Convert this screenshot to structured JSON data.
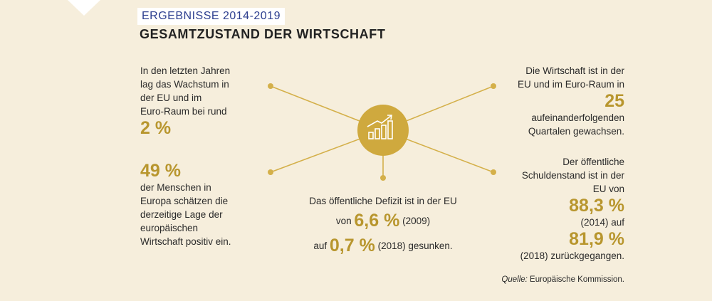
{
  "header": {
    "tag": "ERGEBNISSE 2014-2019",
    "title": "GESAMTZUSTAND DER WIRTSCHAFT"
  },
  "growth": {
    "lines": [
      "In den letzten Jahren",
      "lag das Wachstum in",
      "der EU und im",
      "Euro-Raum bei rund"
    ],
    "figure": "2 %"
  },
  "opinion": {
    "figure": "49 %",
    "lines": [
      "der Menschen in",
      "Europa schätzen die",
      "derzeitige Lage der",
      "europäischen",
      "Wirtschaft positiv ein."
    ]
  },
  "quarters": {
    "lines_before": [
      "Die Wirtschaft ist in der",
      "EU und im Euro-Raum in"
    ],
    "figure": "25",
    "lines_after": [
      "aufeinanderfolgenden",
      "Quartalen gewachsen."
    ]
  },
  "debt": {
    "lines": [
      "Der öffentliche",
      "Schuldenstand ist in der",
      "EU von"
    ],
    "figure_1": "88,3 %",
    "middle": "(2014) auf",
    "figure_2": "81,9 %",
    "end": "(2018) zurückgegangen."
  },
  "deficit": {
    "line_1": "Das öffentliche Defizit ist in der EU",
    "prefix_2": "von",
    "figure_1": "6,6 %",
    "suffix_2": "(2009)",
    "prefix_3": "auf",
    "figure_2": "0,7 %",
    "suffix_3": "(2018) gesunken."
  },
  "source": {
    "label": "Quelle:",
    "text": "Europäische Kommission."
  }
}
